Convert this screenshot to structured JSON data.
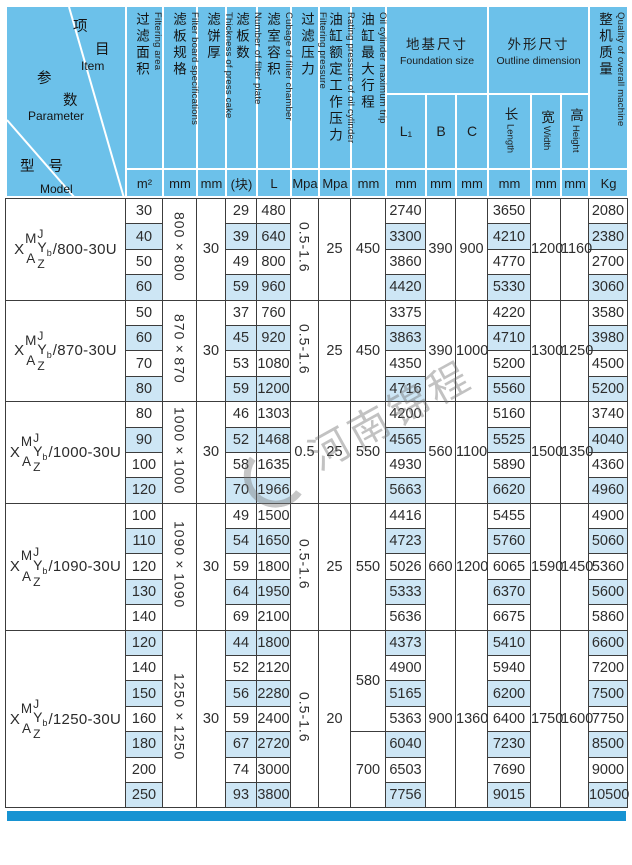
{
  "corner": {
    "item_zh1": "项",
    "item_zh2": "目",
    "item_en": "Item",
    "param_zh1": "参",
    "param_zh2": "数",
    "param_en": "Parameter",
    "model_zh": "型 号",
    "model_en": "Model"
  },
  "columns": [
    {
      "zh": "过滤面积",
      "en": "Filtering area",
      "unit": "m²"
    },
    {
      "zh": "滤板规格",
      "en": "Filter board specifications",
      "unit": "mm"
    },
    {
      "zh": "滤饼厚",
      "en": "Thickness of press cake",
      "unit": "mm"
    },
    {
      "zh": "滤板数",
      "en": "Number of filter plate",
      "unit": "(块)"
    },
    {
      "zh": "滤室容积",
      "en": "Cubage of filter chamber",
      "unit": "L"
    },
    {
      "zh": "过滤压力",
      "en": "Filtering pressure",
      "unit": "Mpa"
    },
    {
      "zh": "油缸额定工作压力",
      "en": "Rating pressure of oil cylinder",
      "unit": "Mpa"
    },
    {
      "zh": "油缸最大行程",
      "en": "Oil cylinder maximum trip",
      "unit": "mm"
    }
  ],
  "foundation": {
    "zh": "地基尺寸",
    "en": "Foundation size",
    "subs": [
      {
        "label": "L₁",
        "unit": "mm"
      },
      {
        "label": "B",
        "unit": "mm"
      },
      {
        "label": "C",
        "unit": "mm"
      }
    ]
  },
  "outline": {
    "zh": "外形尺寸",
    "en": "Outline dimension",
    "subs": [
      {
        "zh": "长",
        "en": "Length",
        "unit": "mm"
      },
      {
        "zh": "宽",
        "en": "Width",
        "unit": "mm"
      },
      {
        "zh": "高",
        "en": "Height",
        "unit": "mm"
      }
    ]
  },
  "quality": {
    "zh": "整机质量",
    "en": "Quality of overall machine",
    "unit": "Kg"
  },
  "model_prefix": {
    "x": "X",
    "m": "M",
    "a": "A",
    "j": "J",
    "y": "Y",
    "y_sub": "b",
    "z": "Z"
  },
  "watermark": {
    "text": "河南锦程"
  },
  "colors": {
    "header_bg": "#6cc1ea",
    "cell_shaded": "#cde6f5",
    "border_dark": "#3c3c3c",
    "header_grid": "#ffffff",
    "bottom_bar": "#1793d2"
  },
  "chart_data": {
    "type": "table"
  },
  "groups": [
    {
      "model_suffix": "/800-30U",
      "specs": "800×800",
      "thickness": "30",
      "filter_pressure": "0.5-1.6",
      "rating_pressure": "25",
      "trip": [
        {
          "value": "450",
          "span": 4
        }
      ],
      "b": "390",
      "c": "900",
      "width": "1200",
      "height": "1160",
      "rows": [
        {
          "area": "30",
          "plates": "29",
          "cubage": "480",
          "l1": "2740",
          "length": "3650",
          "weight": "2080",
          "shaded": false
        },
        {
          "area": "40",
          "plates": "39",
          "cubage": "640",
          "l1": "3300",
          "length": "4210",
          "weight": "2380",
          "shaded": true
        },
        {
          "area": "50",
          "plates": "49",
          "cubage": "800",
          "l1": "3860",
          "length": "4770",
          "weight": "2700",
          "shaded": false
        },
        {
          "area": "60",
          "plates": "59",
          "cubage": "960",
          "l1": "4420",
          "length": "5330",
          "weight": "3060",
          "shaded": true
        }
      ]
    },
    {
      "model_suffix": "/870-30U",
      "specs": "870×870",
      "thickness": "30",
      "filter_pressure": "0.5-1.6",
      "rating_pressure": "25",
      "trip": [
        {
          "value": "450",
          "span": 4
        }
      ],
      "b": "390",
      "c": "1000",
      "width": "1300",
      "height": "1250",
      "rows": [
        {
          "area": "50",
          "plates": "37",
          "cubage": "760",
          "l1": "3375",
          "length": "4220",
          "weight": "3580",
          "shaded": false
        },
        {
          "area": "60",
          "plates": "45",
          "cubage": "920",
          "l1": "3863",
          "length": "4710",
          "weight": "3980",
          "shaded": true
        },
        {
          "area": "70",
          "plates": "53",
          "cubage": "1080",
          "l1": "4350",
          "length": "5200",
          "weight": "4500",
          "shaded": false
        },
        {
          "area": "80",
          "plates": "59",
          "cubage": "1200",
          "l1": "4716",
          "length": "5560",
          "weight": "5200",
          "shaded": true
        }
      ]
    },
    {
      "model_suffix": "/1000-30U",
      "specs": "1000×1000",
      "thickness": "30",
      "filter_pressure": "0.5",
      "rating_pressure": "25",
      "trip": [
        {
          "value": "550",
          "span": 4
        }
      ],
      "b": "560",
      "c": "1100",
      "width": "1500",
      "height": "1350",
      "rows": [
        {
          "area": "80",
          "plates": "46",
          "cubage": "1303",
          "l1": "4200",
          "length": "5160",
          "weight": "3740",
          "shaded": false
        },
        {
          "area": "90",
          "plates": "52",
          "cubage": "1468",
          "l1": "4565",
          "length": "5525",
          "weight": "4040",
          "shaded": true
        },
        {
          "area": "100",
          "plates": "58",
          "cubage": "1635",
          "l1": "4930",
          "length": "5890",
          "weight": "4360",
          "shaded": false
        },
        {
          "area": "120",
          "plates": "70",
          "cubage": "1966",
          "l1": "5663",
          "length": "6620",
          "weight": "4960",
          "shaded": true
        }
      ]
    },
    {
      "model_suffix": "/1090-30U",
      "specs": "1090×1090",
      "thickness": "30",
      "filter_pressure": "0.5-1.6",
      "rating_pressure": "25",
      "trip": [
        {
          "value": "550",
          "span": 5
        }
      ],
      "b": "660",
      "c": "1200",
      "width": "1590",
      "height": "1450",
      "rows": [
        {
          "area": "100",
          "plates": "49",
          "cubage": "1500",
          "l1": "4416",
          "length": "5455",
          "weight": "4900",
          "shaded": false
        },
        {
          "area": "110",
          "plates": "54",
          "cubage": "1650",
          "l1": "4723",
          "length": "5760",
          "weight": "5060",
          "shaded": true
        },
        {
          "area": "120",
          "plates": "59",
          "cubage": "1800",
          "l1": "5026",
          "length": "6065",
          "weight": "5360",
          "shaded": false
        },
        {
          "area": "130",
          "plates": "64",
          "cubage": "1950",
          "l1": "5333",
          "length": "6370",
          "weight": "5600",
          "shaded": true
        },
        {
          "area": "140",
          "plates": "69",
          "cubage": "2100",
          "l1": "5636",
          "length": "6675",
          "weight": "5860",
          "shaded": false
        }
      ]
    },
    {
      "model_suffix": "/1250-30U",
      "specs": "1250×1250",
      "thickness": "30",
      "filter_pressure": "0.5-1.6",
      "rating_pressure": "20",
      "trip": [
        {
          "value": "580",
          "span": 4
        },
        {
          "value": "700",
          "span": 3
        }
      ],
      "b": "900",
      "c": "1360",
      "width": "1750",
      "height": "1600",
      "rows": [
        {
          "area": "120",
          "plates": "44",
          "cubage": "1800",
          "l1": "4373",
          "length": "5410",
          "weight": "6600",
          "shaded": true
        },
        {
          "area": "140",
          "plates": "52",
          "cubage": "2120",
          "l1": "4900",
          "length": "5940",
          "weight": "7200",
          "shaded": false
        },
        {
          "area": "150",
          "plates": "56",
          "cubage": "2280",
          "l1": "5165",
          "length": "6200",
          "weight": "7500",
          "shaded": true
        },
        {
          "area": "160",
          "plates": "59",
          "cubage": "2400",
          "l1": "5363",
          "length": "6400",
          "weight": "7750",
          "shaded": false
        },
        {
          "area": "180",
          "plates": "67",
          "cubage": "2720",
          "l1": "6040",
          "length": "7230",
          "weight": "8500",
          "shaded": true
        },
        {
          "area": "200",
          "plates": "74",
          "cubage": "3000",
          "l1": "6503",
          "length": "7690",
          "weight": "9000",
          "shaded": false
        },
        {
          "area": "250",
          "plates": "93",
          "cubage": "3800",
          "l1": "7756",
          "length": "9015",
          "weight": "10500",
          "shaded": true
        }
      ]
    }
  ]
}
